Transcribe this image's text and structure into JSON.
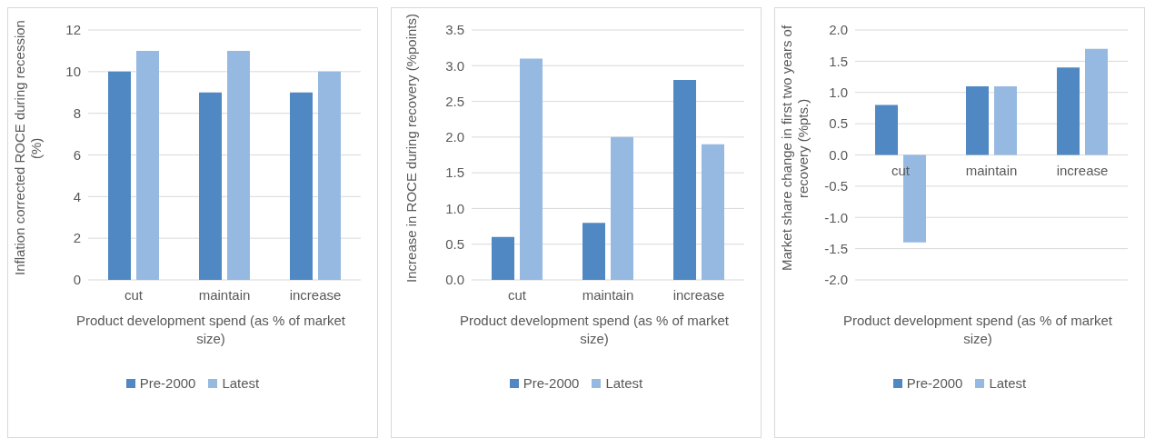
{
  "chart_data": [
    {
      "type": "bar",
      "ylabel": "Inflation corrected ROCE during recession (%)",
      "xlabel": "Product development spend (as % of market size)",
      "categories": [
        "cut",
        "maintain",
        "increase"
      ],
      "series": [
        {
          "name": "Pre-2000",
          "color": "#4f88c2",
          "values": [
            10,
            9,
            9
          ]
        },
        {
          "name": "Latest",
          "color": "#96b9e2",
          "values": [
            11,
            11,
            10
          ]
        }
      ],
      "ylim": [
        0,
        12
      ],
      "yticks": [
        0,
        2,
        4,
        6,
        8,
        10,
        12
      ],
      "grid": "y",
      "legend": "bottom"
    },
    {
      "type": "bar",
      "ylabel": "Increase in ROCE during recovery (%points)",
      "xlabel": "Product development spend (as % of market size)",
      "categories": [
        "cut",
        "maintain",
        "increase"
      ],
      "series": [
        {
          "name": "Pre-2000",
          "color": "#4f88c2",
          "values": [
            0.6,
            0.8,
            2.8
          ]
        },
        {
          "name": "Latest",
          "color": "#96b9e2",
          "values": [
            3.1,
            2.0,
            1.9
          ]
        }
      ],
      "ylim": [
        0,
        3.5
      ],
      "yticks": [
        {
          "value": 0,
          "label": "0.0"
        },
        {
          "value": 0.5,
          "label": "0.5"
        },
        {
          "value": 1,
          "label": "1.0"
        },
        {
          "value": 1.5,
          "label": "1.5"
        },
        {
          "value": 2,
          "label": "2.0"
        },
        {
          "value": 2.5,
          "label": "2.5"
        },
        {
          "value": 3,
          "label": "3.0"
        },
        {
          "value": 3.5,
          "label": "3.5"
        }
      ],
      "grid": "y",
      "legend": "bottom"
    },
    {
      "type": "bar",
      "ylabel": "Market share change in first two years of recovery (%pts.)",
      "xlabel": "Product development spend (as % of market size)",
      "categories": [
        "cut",
        "maintain",
        "increase"
      ],
      "series": [
        {
          "name": "Pre-2000",
          "color": "#4f88c2",
          "values": [
            0.8,
            1.1,
            1.4
          ]
        },
        {
          "name": "Latest",
          "color": "#96b9e2",
          "values": [
            -1.4,
            1.1,
            1.7
          ]
        }
      ],
      "ylim": [
        -2,
        2
      ],
      "yticks": [
        {
          "value": -2,
          "label": "-2.0"
        },
        {
          "value": -1.5,
          "label": "-1.5"
        },
        {
          "value": -1,
          "label": "-1.0"
        },
        {
          "value": -0.5,
          "label": "-0.5"
        },
        {
          "value": 0,
          "label": "0.0"
        },
        {
          "value": 0.5,
          "label": "0.5"
        },
        {
          "value": 1,
          "label": "1.0"
        },
        {
          "value": 1.5,
          "label": "1.5"
        },
        {
          "value": 2,
          "label": "2.0"
        }
      ],
      "grid": "y",
      "legend": "bottom"
    }
  ]
}
